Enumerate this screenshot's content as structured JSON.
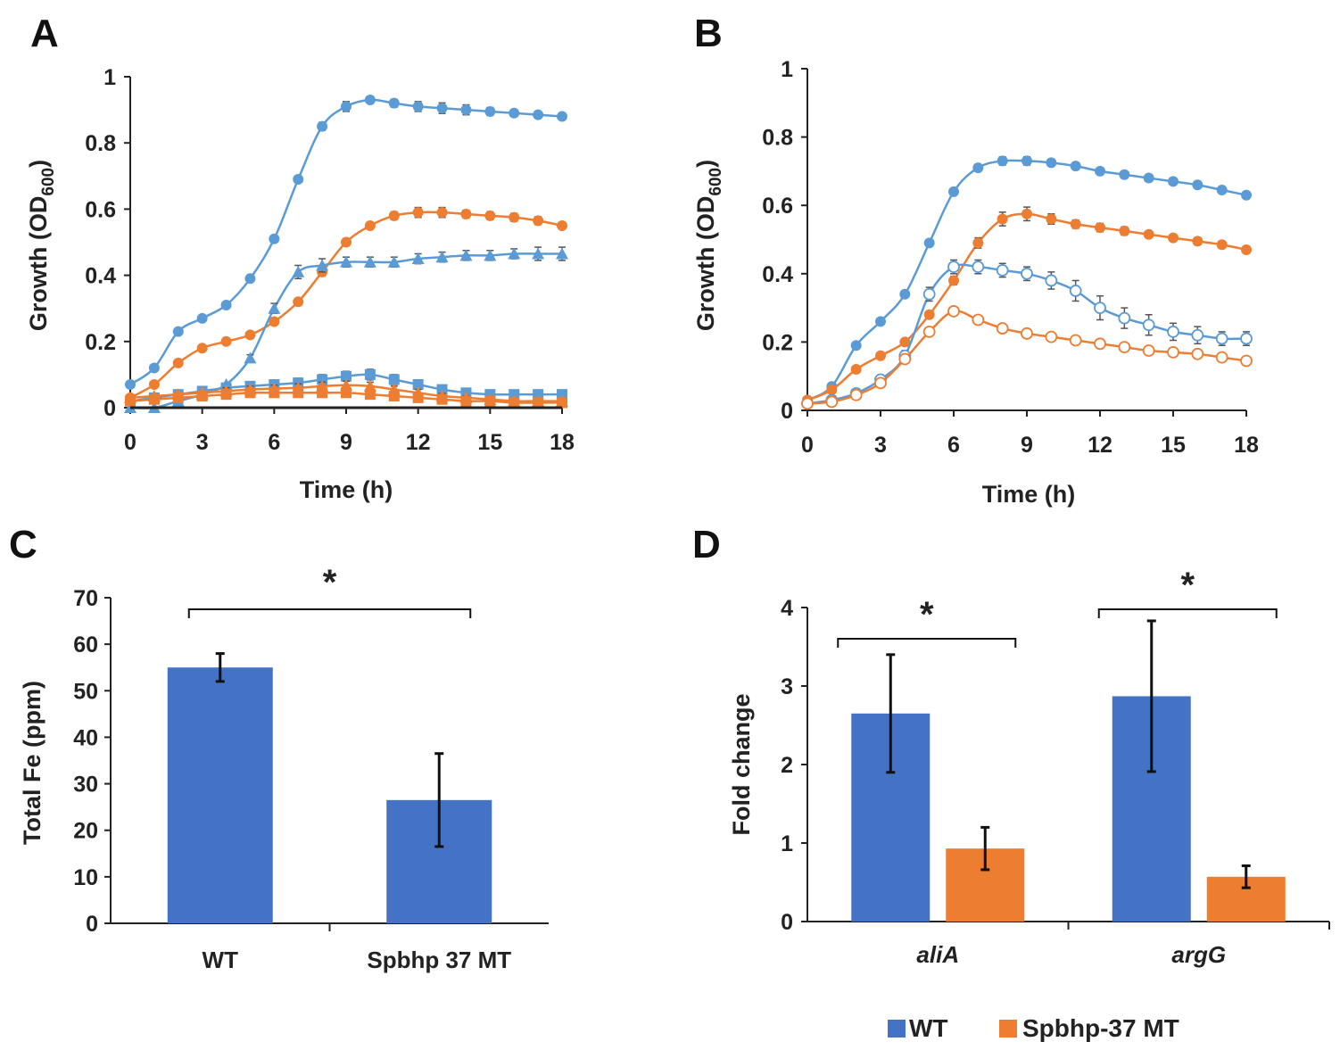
{
  "colors": {
    "blue": "#5B9BD5",
    "orange": "#ED7D31",
    "bar_blue": "#4472C4",
    "bar_orange": "#ED7D31",
    "axis": "#222222",
    "err": "#555555"
  },
  "chart_data": [
    {
      "panel": "A",
      "type": "line",
      "xlabel": "Time (h)",
      "ylabel": "Growth  (OD",
      "ylabel_sub": "600",
      "ylabel_close": ")",
      "xlim": [
        0,
        18
      ],
      "ylim": [
        0,
        1
      ],
      "xticks": [
        0,
        3,
        6,
        9,
        12,
        15,
        18
      ],
      "xtick_labels": [
        "0",
        "3",
        "6",
        "9",
        "12",
        "15",
        "18"
      ],
      "yticks": [
        0,
        0.2,
        0.4,
        0.6,
        0.8,
        1
      ],
      "ytick_labels": [
        "0",
        "0.2",
        "0.4",
        "0.6",
        "0.8",
        "1"
      ],
      "x": [
        0,
        1,
        2,
        3,
        4,
        5,
        6,
        7,
        8,
        9,
        10,
        11,
        12,
        13,
        14,
        15,
        16,
        17,
        18
      ],
      "series": [
        {
          "name": "blue-circle",
          "color": "blue",
          "marker": "circle",
          "values": [
            0.07,
            0.12,
            0.23,
            0.27,
            0.31,
            0.39,
            0.51,
            0.69,
            0.85,
            0.91,
            0.93,
            0.92,
            0.91,
            0.905,
            0.9,
            0.895,
            0.89,
            0.885,
            0.88
          ],
          "errors": [
            0,
            0,
            0,
            0,
            0,
            0,
            0,
            0,
            0.012,
            0.015,
            0.01,
            0.012,
            0.015,
            0.016,
            0.015,
            0.012,
            0.01,
            0.01,
            0.008
          ]
        },
        {
          "name": "orange-circle",
          "color": "orange",
          "marker": "circle",
          "values": [
            0.03,
            0.07,
            0.135,
            0.18,
            0.2,
            0.22,
            0.26,
            0.32,
            0.41,
            0.5,
            0.55,
            0.58,
            0.59,
            0.59,
            0.585,
            0.58,
            0.575,
            0.565,
            0.55
          ],
          "errors": [
            0,
            0,
            0,
            0,
            0,
            0,
            0,
            0.01,
            0.012,
            0.01,
            0.01,
            0.012,
            0.015,
            0.015,
            0.012,
            0.012,
            0.012,
            0.012,
            0.01
          ]
        },
        {
          "name": "blue-triangle",
          "color": "blue",
          "marker": "triangle",
          "values": [
            0.0,
            0.0,
            0.02,
            0.04,
            0.07,
            0.15,
            0.3,
            0.41,
            0.43,
            0.44,
            0.44,
            0.44,
            0.45,
            0.455,
            0.46,
            0.46,
            0.465,
            0.465,
            0.465
          ],
          "errors": [
            0,
            0,
            0,
            0,
            0,
            0.01,
            0.015,
            0.02,
            0.02,
            0.015,
            0.015,
            0.015,
            0.015,
            0.015,
            0.015,
            0.015,
            0.015,
            0.02,
            0.02
          ]
        },
        {
          "name": "blue-square",
          "color": "blue",
          "marker": "square",
          "values": [
            0.02,
            0.03,
            0.04,
            0.05,
            0.06,
            0.065,
            0.07,
            0.075,
            0.085,
            0.095,
            0.1,
            0.085,
            0.07,
            0.055,
            0.045,
            0.04,
            0.04,
            0.04,
            0.04
          ],
          "errors": [
            0,
            0,
            0,
            0,
            0.012,
            0.012,
            0.012,
            0.014,
            0.015,
            0.015,
            0.016,
            0.015,
            0.014,
            0.012,
            0.01,
            0.008,
            0.008,
            0.006,
            0.006
          ]
        },
        {
          "name": "orange-triangle",
          "color": "orange",
          "marker": "triangle",
          "values": [
            0.03,
            0.035,
            0.04,
            0.045,
            0.05,
            0.055,
            0.058,
            0.06,
            0.065,
            0.068,
            0.065,
            0.055,
            0.045,
            0.035,
            0.03,
            0.025,
            0.02,
            0.02,
            0.02
          ],
          "errors": [
            0,
            0,
            0,
            0,
            0.01,
            0.01,
            0.01,
            0.012,
            0.012,
            0.012,
            0.012,
            0.01,
            0.01,
            0.008,
            0.006,
            0.006,
            0.005,
            0.005,
            0.005
          ]
        },
        {
          "name": "orange-square",
          "color": "orange",
          "marker": "square",
          "values": [
            0.02,
            0.025,
            0.03,
            0.035,
            0.04,
            0.045,
            0.045,
            0.045,
            0.045,
            0.045,
            0.04,
            0.035,
            0.03,
            0.025,
            0.02,
            0.02,
            0.015,
            0.015,
            0.015
          ],
          "errors": [
            0,
            0,
            0,
            0,
            0.008,
            0.008,
            0.008,
            0.01,
            0.01,
            0.01,
            0.01,
            0.008,
            0.008,
            0.006,
            0.005,
            0.005,
            0.005,
            0.005,
            0.005
          ]
        },
        {
          "name": "black-baseline",
          "color": "axis",
          "marker": "none",
          "values": [
            0,
            0,
            0,
            0,
            0,
            0,
            0,
            0,
            0,
            0,
            0,
            0,
            0,
            0,
            0,
            0,
            0,
            0,
            0
          ],
          "errors": []
        }
      ]
    },
    {
      "panel": "B",
      "type": "line",
      "xlabel": "Time (h)",
      "ylabel": "Growth  (OD",
      "ylabel_sub": "600",
      "ylabel_close": ")",
      "xlim": [
        0,
        18
      ],
      "ylim": [
        0,
        1
      ],
      "xticks": [
        0,
        3,
        6,
        9,
        12,
        15,
        18
      ],
      "xtick_labels": [
        "0",
        "3",
        "6",
        "9",
        "12",
        "15",
        "18"
      ],
      "yticks": [
        0,
        0.2,
        0.4,
        0.6,
        0.8,
        1
      ],
      "ytick_labels": [
        "0",
        "0.2",
        "0.4",
        "0.6",
        "0.8",
        "1"
      ],
      "x": [
        0,
        1,
        2,
        3,
        4,
        5,
        6,
        7,
        8,
        9,
        10,
        11,
        12,
        13,
        14,
        15,
        16,
        17,
        18
      ],
      "series": [
        {
          "name": "blue-filled",
          "color": "blue",
          "marker": "circle",
          "values": [
            0.03,
            0.07,
            0.19,
            0.26,
            0.34,
            0.49,
            0.64,
            0.71,
            0.73,
            0.73,
            0.725,
            0.715,
            0.7,
            0.69,
            0.68,
            0.67,
            0.66,
            0.645,
            0.63
          ],
          "errors": [
            0,
            0,
            0,
            0,
            0,
            0,
            0,
            0.01,
            0.012,
            0.012,
            0.01,
            0.01,
            0.01,
            0.01,
            0.01,
            0.01,
            0.01,
            0.01,
            0.01
          ]
        },
        {
          "name": "orange-filled",
          "color": "orange",
          "marker": "circle",
          "values": [
            0.03,
            0.06,
            0.12,
            0.16,
            0.2,
            0.28,
            0.38,
            0.49,
            0.56,
            0.575,
            0.56,
            0.545,
            0.535,
            0.525,
            0.515,
            0.505,
            0.495,
            0.485,
            0.47
          ],
          "errors": [
            0,
            0,
            0,
            0,
            0,
            0,
            0.012,
            0.015,
            0.02,
            0.02,
            0.015,
            0.012,
            0.012,
            0.012,
            0.01,
            0.01,
            0.01,
            0.01,
            0.01
          ]
        },
        {
          "name": "blue-open",
          "color": "blue",
          "marker": "open-circle",
          "values": [
            0.02,
            0.03,
            0.05,
            0.09,
            0.16,
            0.34,
            0.42,
            0.42,
            0.41,
            0.4,
            0.38,
            0.35,
            0.3,
            0.27,
            0.25,
            0.23,
            0.22,
            0.21,
            0.21
          ],
          "errors": [
            0,
            0,
            0,
            0,
            0.015,
            0.02,
            0.02,
            0.02,
            0.02,
            0.02,
            0.025,
            0.03,
            0.035,
            0.03,
            0.03,
            0.025,
            0.025,
            0.02,
            0.02
          ]
        },
        {
          "name": "orange-open",
          "color": "orange",
          "marker": "open-circle",
          "values": [
            0.02,
            0.025,
            0.045,
            0.08,
            0.15,
            0.23,
            0.29,
            0.265,
            0.24,
            0.225,
            0.215,
            0.205,
            0.195,
            0.185,
            0.175,
            0.17,
            0.165,
            0.155,
            0.145
          ],
          "errors": [
            0,
            0,
            0,
            0,
            0.01,
            0.012,
            0.012,
            0.012,
            0.012,
            0.012,
            0.012,
            0.012,
            0.012,
            0.012,
            0.012,
            0.012,
            0.012,
            0.012,
            0.012
          ]
        }
      ]
    },
    {
      "panel": "C",
      "type": "bar",
      "ylabel": "Total Fe (ppm)",
      "ylim": [
        0,
        70
      ],
      "yticks": [
        0,
        10,
        20,
        30,
        40,
        50,
        60,
        70
      ],
      "ytick_labels": [
        "0",
        "10",
        "20",
        "30",
        "40",
        "50",
        "60",
        "70"
      ],
      "categories": [
        "WT",
        "Spbhp 37 MT"
      ],
      "values": [
        55,
        26.5
      ],
      "errors": [
        3,
        10
      ],
      "significance": "*"
    },
    {
      "panel": "D",
      "type": "bar",
      "ylabel": "Fold change",
      "ylim": [
        0,
        4
      ],
      "yticks": [
        0,
        1,
        2,
        3,
        4
      ],
      "ytick_labels": [
        "0",
        "1",
        "2",
        "3",
        "4"
      ],
      "categories": [
        "aliA",
        "argG"
      ],
      "series": [
        {
          "name": "WT",
          "color": "bar_blue",
          "values": [
            2.65,
            2.87
          ],
          "errors": [
            0.75,
            0.96
          ]
        },
        {
          "name": "Spbhp-37 MT",
          "color": "bar_orange",
          "values": [
            0.93,
            0.57
          ],
          "errors": [
            0.27,
            0.14
          ]
        }
      ],
      "significance": [
        "*",
        "*"
      ],
      "legend": [
        "WT",
        "Spbhp-37 MT"
      ],
      "legend_position": "bottom"
    }
  ]
}
